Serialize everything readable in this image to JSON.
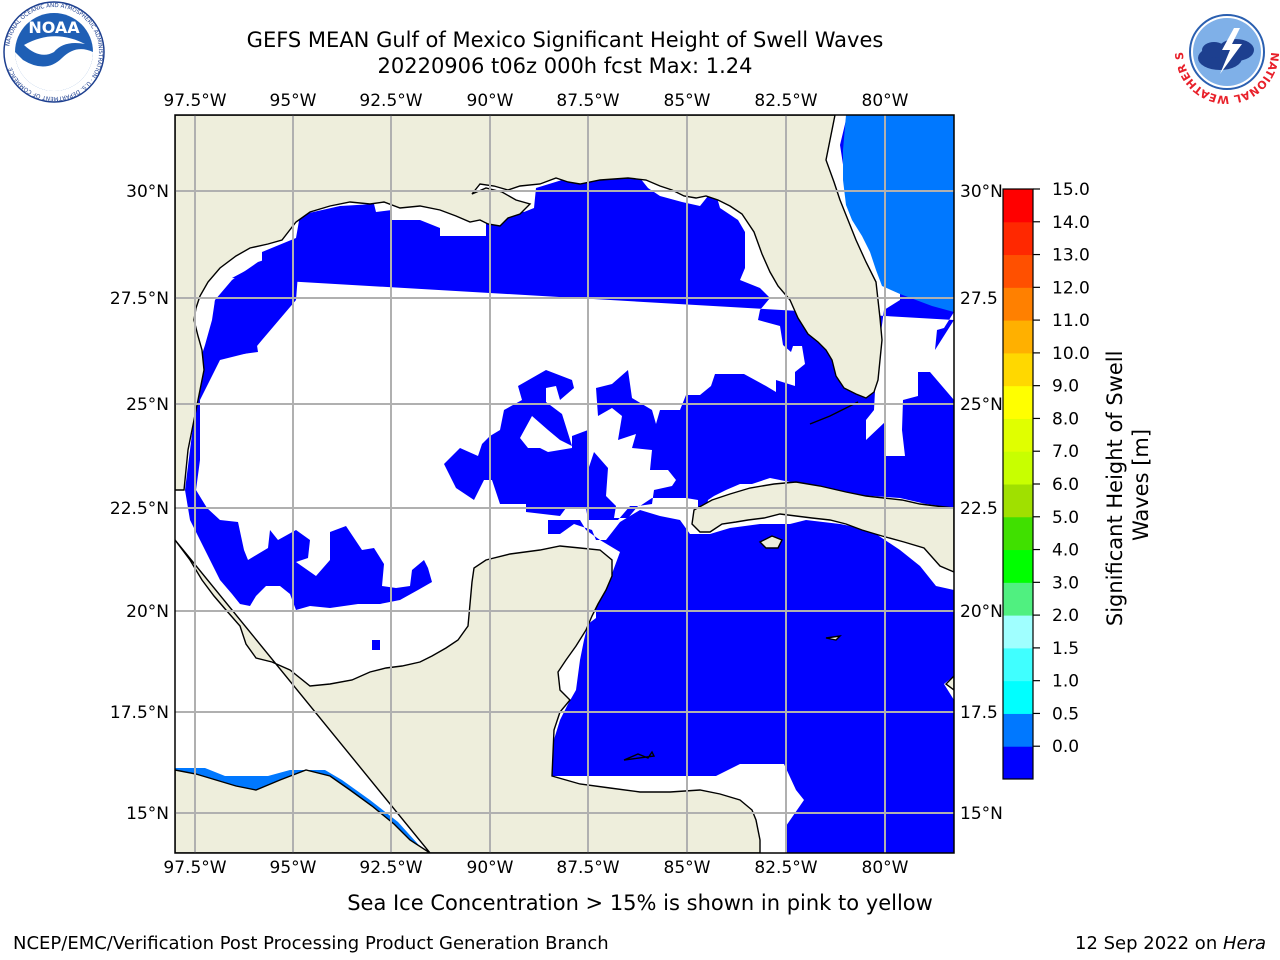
{
  "title": "GEFS MEAN Gulf of Mexico Significant Height of Swell Waves",
  "subtitle": "20220906 t06z 000h fcst   Max: 1.24",
  "caption": "Sea Ice Concentration > 15% is shown in pink to yellow",
  "footer": {
    "credit": "NCEP/EMC/Verification Post Processing Product Generation Branch",
    "date": "12 Sep 2022 on ",
    "host": "Hera"
  },
  "logos": {
    "left_icon": "noaa-logo",
    "left_text": "NOAA",
    "left_ring_text": "NATIONAL OCEANIC AND ATMOSPHERIC ADMINISTRATION · U.S. DEPARTMENT OF COMMERCE",
    "right_icon": "national-weather-service-logo",
    "right_ring_text": "NATIONAL WEATHER SERVICE"
  },
  "map": {
    "lon_ticks": [
      "97.5°W",
      "95°W",
      "92.5°W",
      "90°W",
      "87.5°W",
      "85°W",
      "82.5°W",
      "80°W"
    ],
    "lat_ticks_left": [
      "30°N",
      "27.5°N",
      "25°N",
      "22.5°N",
      "20°N",
      "17.5°N",
      "15°N"
    ],
    "lat_ticks_right": [
      "30°N",
      "27.5",
      "25°N",
      "22.5",
      "20°N",
      "17.5",
      "15°N"
    ],
    "colors": {
      "land": "#eeeedc",
      "no_data": "#ffffff",
      "grid": "#b0b0b0"
    }
  },
  "colorbar": {
    "label": "Significant Height of Swell Waves [m]",
    "label_line1": "Significant Height of Swell",
    "label_line2": "Waves [m]",
    "ticks": [
      "15.0",
      "14.0",
      "13.0",
      "12.0",
      "11.0",
      "10.0",
      "9.0",
      "8.0",
      "7.0",
      "6.0",
      "5.0",
      "4.0",
      "3.0",
      "2.0",
      "1.5",
      "1.0",
      "0.5",
      "0.0"
    ],
    "colors": [
      "#0000ff",
      "#0078ff",
      "#00ffff",
      "#40ffff",
      "#a0ffff",
      "#50f080",
      "#00ff00",
      "#40e000",
      "#a0e000",
      "#c8ff00",
      "#e0ff00",
      "#ffff00",
      "#ffd800",
      "#ffb000",
      "#ff8000",
      "#ff5000",
      "#ff2800",
      "#ff0000"
    ]
  }
}
